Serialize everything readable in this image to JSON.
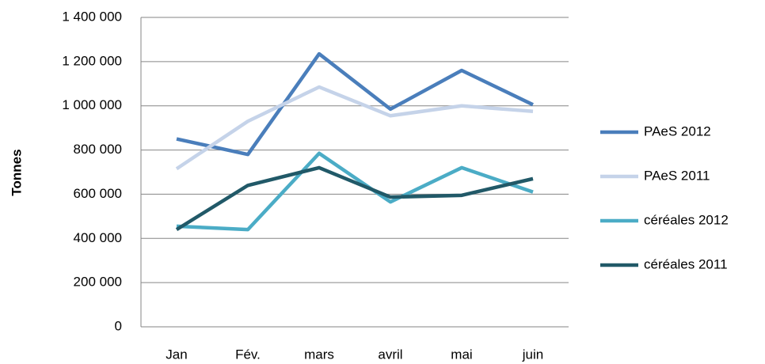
{
  "chart_data": {
    "type": "line",
    "y_label": "Tonnes",
    "categories": [
      "Jan",
      "Fév.",
      "mars",
      "avril",
      "mai",
      "juin"
    ],
    "series": [
      {
        "name": "PAeS 2012",
        "color": "#4a7ebb",
        "values": [
          850000,
          780000,
          1235000,
          985000,
          1160000,
          1005000
        ]
      },
      {
        "name": "PAeS 2011",
        "color": "#c5d3e9",
        "values": [
          715000,
          930000,
          1085000,
          955000,
          1000000,
          975000
        ]
      },
      {
        "name": "céréales 2012",
        "color": "#4bacc6",
        "values": [
          455000,
          440000,
          785000,
          565000,
          720000,
          610000
        ]
      },
      {
        "name": "céréales 2011",
        "color": "#215968",
        "values": [
          440000,
          640000,
          720000,
          587000,
          595000,
          670000
        ]
      }
    ],
    "ylim": [
      0,
      1400000
    ],
    "yticks": [
      0,
      {
        "value": 200000,
        "label": "200 000"
      },
      {
        "value": 400000,
        "label": "400 000"
      },
      {
        "value": 600000,
        "label": "600 000"
      },
      {
        "value": 800000,
        "label": "800 000"
      },
      {
        "value": 1000000,
        "label": "1 000 000"
      },
      {
        "value": 1200000,
        "label": "1 200 000"
      },
      {
        "value": 1400000,
        "label": "1 400 000"
      }
    ],
    "grid": true,
    "legend": "right"
  }
}
